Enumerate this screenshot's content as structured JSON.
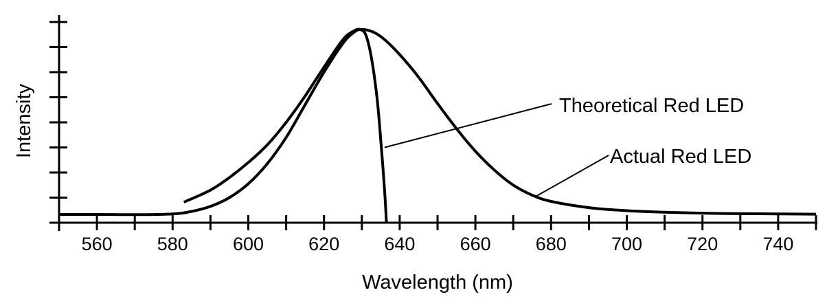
{
  "chart_data": {
    "type": "line",
    "title": "",
    "xlabel": "Wavelength (nm)",
    "ylabel": "Intensity",
    "xlim": [
      550,
      750
    ],
    "ylim": [
      0,
      8.2
    ],
    "x_ticks_major": [
      560,
      580,
      600,
      620,
      640,
      660,
      680,
      700,
      720,
      740
    ],
    "x_tick_step_minor": 10,
    "y_tick_count": 8,
    "y_tick_labels_shown": false,
    "grid": false,
    "legend": "none",
    "series": [
      {
        "name": "Actual Red LED",
        "x": [
          550,
          560,
          570,
          580,
          585,
          590,
          595,
          600,
          605,
          610,
          615,
          620,
          625,
          628,
          630,
          633,
          636,
          640,
          645,
          650,
          655,
          660,
          665,
          670,
          675,
          680,
          690,
          700,
          710,
          720,
          730,
          740,
          750
        ],
        "y": [
          0.33,
          0.33,
          0.32,
          0.35,
          0.45,
          0.65,
          1.0,
          1.55,
          2.35,
          3.4,
          4.7,
          6.0,
          7.15,
          7.6,
          7.7,
          7.6,
          7.3,
          6.7,
          5.8,
          4.75,
          3.75,
          2.85,
          2.1,
          1.5,
          1.1,
          0.85,
          0.6,
          0.48,
          0.42,
          0.38,
          0.36,
          0.35,
          0.34
        ]
      },
      {
        "name": "Theoretical Red LED",
        "x": [
          583,
          590,
          595,
          600,
          605,
          610,
          615,
          620,
          625,
          628,
          629.5,
          631,
          632.5,
          634,
          635,
          636,
          636.5
        ],
        "y": [
          0.82,
          1.3,
          1.8,
          2.4,
          3.1,
          4.0,
          5.05,
          6.2,
          7.3,
          7.65,
          7.7,
          7.5,
          6.6,
          5.0,
          3.3,
          1.3,
          0.0
        ]
      }
    ],
    "annotations": [
      {
        "text": "Theoretical Red LED",
        "series": "Theoretical Red LED",
        "points_to": [
          636.0,
          3.0
        ]
      },
      {
        "text": "Actual Red LED",
        "series": "Actual Red LED",
        "points_to": [
          676,
          1.05
        ]
      }
    ]
  }
}
